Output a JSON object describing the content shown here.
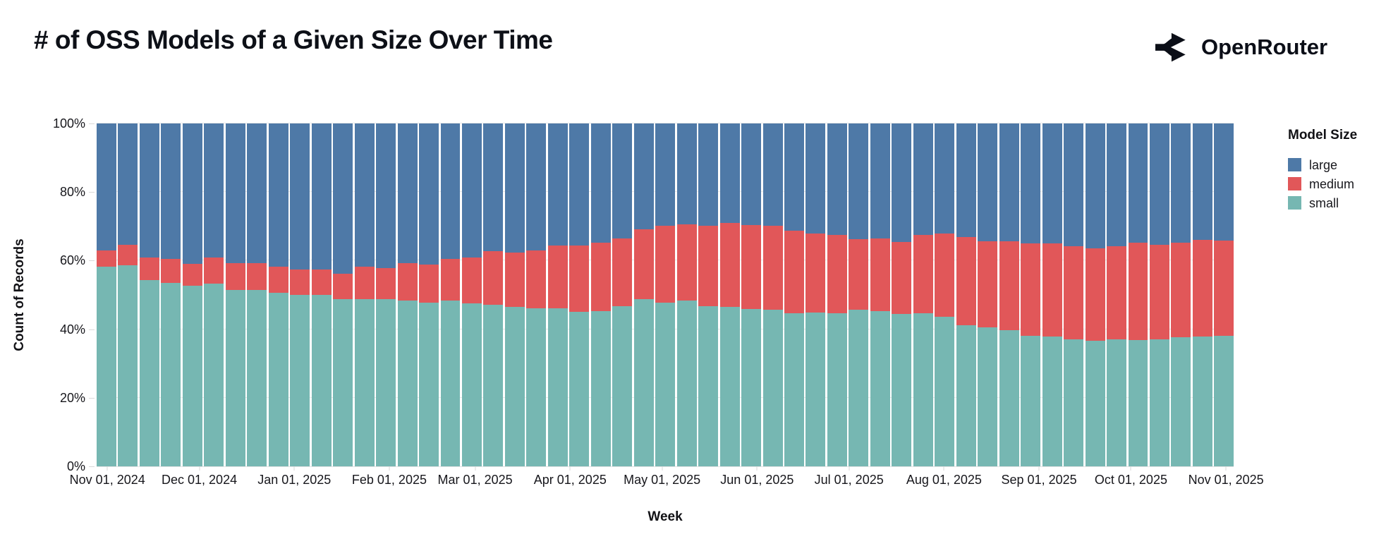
{
  "header": {
    "title": "# of OSS Models of a Given Size Over Time",
    "brand": "OpenRouter"
  },
  "colors": {
    "large": "#4e79a7",
    "medium": "#e15759",
    "small": "#76b7b2",
    "text_dark": "#0d1017",
    "axis_text": "#17171c",
    "gridline": "#e8e8e8"
  },
  "chart_data": {
    "type": "bar",
    "stacked": true,
    "normalized_percent": true,
    "title": "# of OSS Models of a Given Size Over Time",
    "xlabel": "Week",
    "ylabel": "Count of Records",
    "ylim": [
      0,
      100
    ],
    "y_ticks": [
      {
        "label": "100%",
        "value": 100
      },
      {
        "label": "80%",
        "value": 80
      },
      {
        "label": "60%",
        "value": 60
      },
      {
        "label": "40%",
        "value": 40
      },
      {
        "label": "20%",
        "value": 20
      },
      {
        "label": "0%",
        "value": 0
      }
    ],
    "x_ticks": [
      {
        "label": "Nov 01, 2024",
        "day": 0
      },
      {
        "label": "Dec 01, 2024",
        "day": 30
      },
      {
        "label": "Jan 01, 2025",
        "day": 61
      },
      {
        "label": "Feb 01, 2025",
        "day": 92
      },
      {
        "label": "Mar 01, 2025",
        "day": 120
      },
      {
        "label": "Apr 01, 2025",
        "day": 151
      },
      {
        "label": "May 01, 2025",
        "day": 181
      },
      {
        "label": "Jun 01, 2025",
        "day": 212
      },
      {
        "label": "Jul 01, 2025",
        "day": 242
      },
      {
        "label": "Aug 01, 2025",
        "day": 273
      },
      {
        "label": "Sep 01, 2025",
        "day": 304
      },
      {
        "label": "Oct 01, 2025",
        "day": 334
      },
      {
        "label": "Nov 01, 2025",
        "day": 365
      }
    ],
    "x_axis_span_days": 371,
    "band_offset_days": 3.5,
    "x": [
      "2024-11-01",
      "2024-11-08",
      "2024-11-15",
      "2024-11-22",
      "2024-11-29",
      "2024-12-06",
      "2024-12-13",
      "2024-12-20",
      "2024-12-27",
      "2025-01-03",
      "2025-01-10",
      "2025-01-17",
      "2025-01-24",
      "2025-01-31",
      "2025-02-07",
      "2025-02-14",
      "2025-02-21",
      "2025-02-28",
      "2025-03-07",
      "2025-03-14",
      "2025-03-21",
      "2025-03-28",
      "2025-04-04",
      "2025-04-11",
      "2025-04-18",
      "2025-04-25",
      "2025-05-02",
      "2025-05-09",
      "2025-05-16",
      "2025-05-23",
      "2025-05-30",
      "2025-06-06",
      "2025-06-13",
      "2025-06-20",
      "2025-06-27",
      "2025-07-04",
      "2025-07-11",
      "2025-07-18",
      "2025-07-25",
      "2025-08-01",
      "2025-08-08",
      "2025-08-15",
      "2025-08-22",
      "2025-08-29",
      "2025-09-05",
      "2025-09-12",
      "2025-09-19",
      "2025-09-26",
      "2025-10-03",
      "2025-10-10",
      "2025-10-17",
      "2025-10-24",
      "2025-10-31"
    ],
    "series": [
      {
        "name": "small",
        "color": "#76b7b2",
        "values": [
          58.3,
          58.6,
          54.3,
          53.5,
          52.6,
          53.3,
          51.5,
          51.5,
          50.7,
          49.9,
          49.9,
          48.7,
          48.7,
          48.7,
          48.3,
          47.8,
          48.3,
          47.6,
          47.2,
          46.5,
          46.0,
          46.0,
          45.1,
          45.2,
          46.7,
          48.7,
          47.8,
          48.3,
          46.7,
          46.5,
          45.8,
          45.6,
          44.6,
          44.9,
          44.6,
          45.6,
          45.3,
          44.4,
          44.6,
          43.7,
          41.2,
          40.5,
          39.8,
          38.1,
          37.8,
          37.1,
          36.7,
          37.1,
          36.9,
          37.1,
          37.6,
          37.8,
          38.1
        ]
      },
      {
        "name": "medium",
        "color": "#e15759",
        "values": [
          4.6,
          6.0,
          6.7,
          7.0,
          6.5,
          7.7,
          7.8,
          7.8,
          7.6,
          7.5,
          7.5,
          7.4,
          9.6,
          9.2,
          11.0,
          11.0,
          12.1,
          13.4,
          15.5,
          15.9,
          16.9,
          18.5,
          19.4,
          20.0,
          19.8,
          20.4,
          22.4,
          22.3,
          23.5,
          24.4,
          24.6,
          24.6,
          24.2,
          23.0,
          22.9,
          20.7,
          21.2,
          21.0,
          22.9,
          24.2,
          25.6,
          25.1,
          25.8,
          26.9,
          27.3,
          27.2,
          26.9,
          27.2,
          28.3,
          27.5,
          27.6,
          28.3,
          27.7
        ]
      },
      {
        "name": "large",
        "color": "#4e79a7",
        "values": [
          37.1,
          35.4,
          39.0,
          39.5,
          40.9,
          39.0,
          40.7,
          40.7,
          41.7,
          42.6,
          42.6,
          43.9,
          41.7,
          42.1,
          40.7,
          41.2,
          39.6,
          39.0,
          37.3,
          37.6,
          37.1,
          35.5,
          35.5,
          34.8,
          33.5,
          30.9,
          29.8,
          29.4,
          29.8,
          29.1,
          29.6,
          29.8,
          31.2,
          32.1,
          32.5,
          33.7,
          33.5,
          34.6,
          32.5,
          32.1,
          33.2,
          34.4,
          34.4,
          35.0,
          34.9,
          35.7,
          36.4,
          35.7,
          34.8,
          35.4,
          34.8,
          33.9,
          34.2
        ]
      }
    ],
    "stack_order_bottom_to_top": [
      "small",
      "medium",
      "large"
    ],
    "legend": {
      "title": "Model Size",
      "position": "right",
      "entries": [
        {
          "label": "large",
          "color": "#4e79a7"
        },
        {
          "label": "medium",
          "color": "#e15759"
        },
        {
          "label": "small",
          "color": "#76b7b2"
        }
      ]
    },
    "grid": true
  }
}
